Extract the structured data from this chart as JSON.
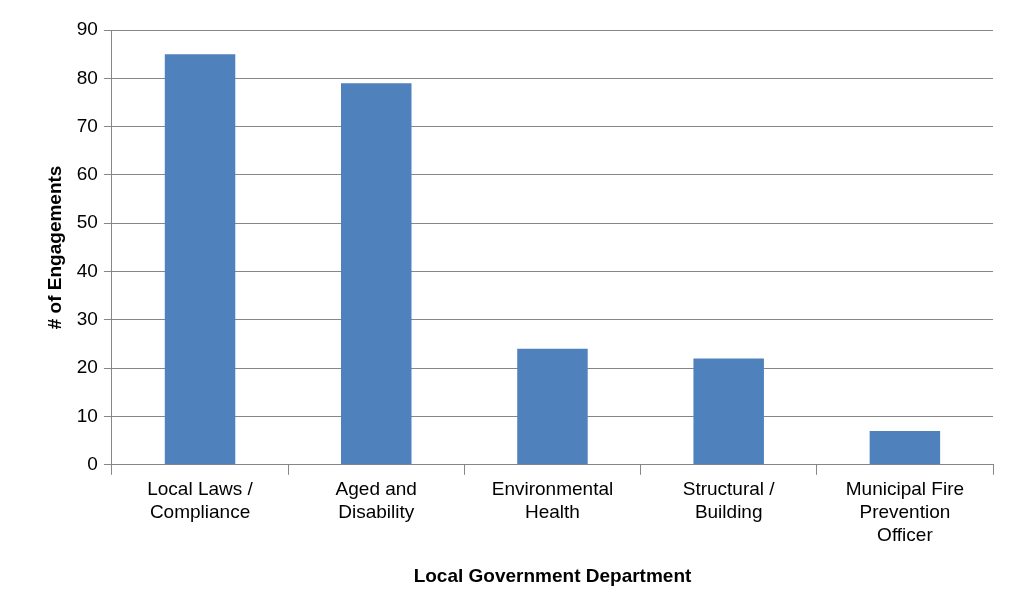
{
  "chart_data": {
    "type": "bar",
    "xlabel": "Local Government Department",
    "ylabel": "# of Engagements",
    "categories": [
      "Local Laws / Compliance",
      "Aged and Disability",
      "Environmental Health",
      "Structural / Building",
      "Municipal Fire Prevention Officer"
    ],
    "values": [
      85,
      79,
      24,
      22,
      7
    ],
    "color": "#4f81bd",
    "ylim": [
      0,
      90
    ],
    "yticks": [
      0,
      10,
      20,
      30,
      40,
      50,
      60,
      70,
      80,
      90
    ],
    "grid": "y",
    "legend": false
  }
}
